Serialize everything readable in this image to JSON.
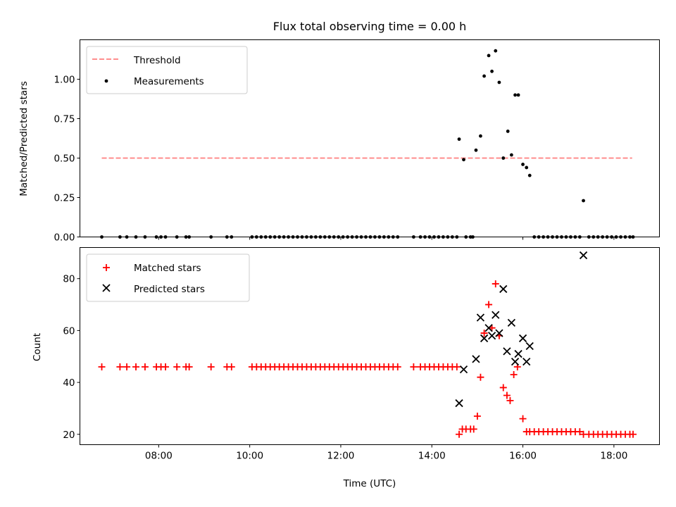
{
  "chart_data": [
    {
      "type": "scatter",
      "title": "Flux total observing time = 0.00 h",
      "ylabel": "Matched/Predicted stars",
      "xlabel": "",
      "x_unit": "hours UTC",
      "xlim": [
        6.27,
        19.0
      ],
      "ylim": [
        0,
        1.25
      ],
      "yticks": [
        "0.00",
        "0.25",
        "0.50",
        "0.75",
        "1.00"
      ],
      "xticks": [
        "08:00",
        "10:00",
        "12:00",
        "14:00",
        "16:00",
        "18:00"
      ],
      "legend_position": "top-left",
      "threshold": {
        "label": "Threshold",
        "value": 0.5,
        "x_range": [
          6.75,
          18.4
        ],
        "color": "#ff7f7f"
      },
      "series": [
        {
          "name": "Measurements",
          "color": "#000000",
          "marker": "dot",
          "points": [
            [
              6.75,
              0
            ],
            [
              7.15,
              0
            ],
            [
              7.3,
              0
            ],
            [
              7.5,
              0
            ],
            [
              7.7,
              0
            ],
            [
              7.95,
              0
            ],
            [
              8.05,
              0
            ],
            [
              8.15,
              0
            ],
            [
              8.4,
              0
            ],
            [
              8.6,
              0
            ],
            [
              8.67,
              0
            ],
            [
              9.15,
              0
            ],
            [
              9.5,
              0
            ],
            [
              9.6,
              0
            ],
            [
              10.05,
              0
            ],
            [
              10.15,
              0
            ],
            [
              10.25,
              0
            ],
            [
              10.35,
              0
            ],
            [
              10.45,
              0
            ],
            [
              10.55,
              0
            ],
            [
              10.65,
              0
            ],
            [
              10.75,
              0
            ],
            [
              10.85,
              0
            ],
            [
              10.95,
              0
            ],
            [
              11.05,
              0
            ],
            [
              11.15,
              0
            ],
            [
              11.25,
              0
            ],
            [
              11.35,
              0
            ],
            [
              11.45,
              0
            ],
            [
              11.55,
              0
            ],
            [
              11.65,
              0
            ],
            [
              11.75,
              0
            ],
            [
              11.85,
              0
            ],
            [
              11.95,
              0
            ],
            [
              12.05,
              0
            ],
            [
              12.15,
              0
            ],
            [
              12.25,
              0
            ],
            [
              12.35,
              0
            ],
            [
              12.45,
              0
            ],
            [
              12.55,
              0
            ],
            [
              12.65,
              0
            ],
            [
              12.75,
              0
            ],
            [
              12.85,
              0
            ],
            [
              12.95,
              0
            ],
            [
              13.05,
              0
            ],
            [
              13.15,
              0
            ],
            [
              13.25,
              0
            ],
            [
              13.6,
              0
            ],
            [
              13.75,
              0
            ],
            [
              13.85,
              0
            ],
            [
              13.95,
              0
            ],
            [
              14.05,
              0
            ],
            [
              14.15,
              0
            ],
            [
              14.25,
              0
            ],
            [
              14.35,
              0
            ],
            [
              14.45,
              0
            ],
            [
              14.55,
              0
            ],
            [
              14.75,
              0
            ],
            [
              14.85,
              0
            ],
            [
              14.9,
              0
            ],
            [
              14.6,
              0.62
            ],
            [
              14.7,
              0.49
            ],
            [
              14.97,
              0.55
            ],
            [
              15.07,
              0.64
            ],
            [
              15.15,
              1.02
            ],
            [
              15.25,
              1.15
            ],
            [
              15.32,
              1.05
            ],
            [
              15.4,
              1.18
            ],
            [
              15.48,
              0.98
            ],
            [
              15.57,
              0.5
            ],
            [
              15.67,
              0.67
            ],
            [
              15.75,
              0.52
            ],
            [
              15.83,
              0.9
            ],
            [
              15.9,
              0.9
            ],
            [
              16.0,
              0.46
            ],
            [
              16.08,
              0.44
            ],
            [
              16.15,
              0.39
            ],
            [
              16.25,
              0
            ],
            [
              16.35,
              0
            ],
            [
              16.45,
              0
            ],
            [
              16.55,
              0
            ],
            [
              16.65,
              0
            ],
            [
              16.75,
              0
            ],
            [
              16.85,
              0
            ],
            [
              16.95,
              0
            ],
            [
              17.05,
              0
            ],
            [
              17.15,
              0
            ],
            [
              17.25,
              0
            ],
            [
              17.33,
              0.23
            ],
            [
              17.45,
              0
            ],
            [
              17.55,
              0
            ],
            [
              17.65,
              0
            ],
            [
              17.75,
              0
            ],
            [
              17.85,
              0
            ],
            [
              17.95,
              0
            ],
            [
              18.05,
              0
            ],
            [
              18.15,
              0
            ],
            [
              18.25,
              0
            ],
            [
              18.35,
              0
            ],
            [
              18.42,
              0
            ]
          ]
        }
      ]
    },
    {
      "type": "scatter",
      "title": "",
      "xlabel": "Time (UTC)",
      "ylabel": "Count",
      "x_unit": "hours UTC",
      "xlim": [
        6.27,
        19.0
      ],
      "ylim": [
        16,
        92
      ],
      "yticks": [
        "20",
        "40",
        "60",
        "80"
      ],
      "xticks": [
        "08:00",
        "10:00",
        "12:00",
        "14:00",
        "16:00",
        "18:00"
      ],
      "legend_position": "top-left",
      "series": [
        {
          "name": "Matched stars",
          "color": "#ff0000",
          "marker": "plus",
          "points": [
            [
              6.75,
              46
            ],
            [
              7.15,
              46
            ],
            [
              7.3,
              46
            ],
            [
              7.5,
              46
            ],
            [
              7.7,
              46
            ],
            [
              7.95,
              46
            ],
            [
              8.05,
              46
            ],
            [
              8.15,
              46
            ],
            [
              8.4,
              46
            ],
            [
              8.6,
              46
            ],
            [
              8.67,
              46
            ],
            [
              9.15,
              46
            ],
            [
              9.5,
              46
            ],
            [
              9.6,
              46
            ],
            [
              10.05,
              46
            ],
            [
              10.15,
              46
            ],
            [
              10.25,
              46
            ],
            [
              10.35,
              46
            ],
            [
              10.45,
              46
            ],
            [
              10.55,
              46
            ],
            [
              10.65,
              46
            ],
            [
              10.75,
              46
            ],
            [
              10.85,
              46
            ],
            [
              10.95,
              46
            ],
            [
              11.05,
              46
            ],
            [
              11.15,
              46
            ],
            [
              11.25,
              46
            ],
            [
              11.35,
              46
            ],
            [
              11.45,
              46
            ],
            [
              11.55,
              46
            ],
            [
              11.65,
              46
            ],
            [
              11.75,
              46
            ],
            [
              11.85,
              46
            ],
            [
              11.95,
              46
            ],
            [
              12.05,
              46
            ],
            [
              12.15,
              46
            ],
            [
              12.25,
              46
            ],
            [
              12.35,
              46
            ],
            [
              12.45,
              46
            ],
            [
              12.55,
              46
            ],
            [
              12.65,
              46
            ],
            [
              12.75,
              46
            ],
            [
              12.85,
              46
            ],
            [
              12.95,
              46
            ],
            [
              13.05,
              46
            ],
            [
              13.15,
              46
            ],
            [
              13.25,
              46
            ],
            [
              13.6,
              46
            ],
            [
              13.75,
              46
            ],
            [
              13.85,
              46
            ],
            [
              13.95,
              46
            ],
            [
              14.05,
              46
            ],
            [
              14.15,
              46
            ],
            [
              14.25,
              46
            ],
            [
              14.35,
              46
            ],
            [
              14.45,
              46
            ],
            [
              14.55,
              46
            ],
            [
              14.6,
              20
            ],
            [
              14.67,
              22
            ],
            [
              14.75,
              22
            ],
            [
              14.85,
              22
            ],
            [
              14.92,
              22
            ],
            [
              15.0,
              27
            ],
            [
              15.07,
              42
            ],
            [
              15.15,
              59
            ],
            [
              15.25,
              70
            ],
            [
              15.32,
              61
            ],
            [
              15.4,
              78
            ],
            [
              15.48,
              58
            ],
            [
              15.57,
              38
            ],
            [
              15.65,
              35
            ],
            [
              15.72,
              33
            ],
            [
              15.8,
              43
            ],
            [
              15.88,
              46
            ],
            [
              16.0,
              26
            ],
            [
              16.08,
              21
            ],
            [
              16.15,
              21
            ],
            [
              16.25,
              21
            ],
            [
              16.35,
              21
            ],
            [
              16.45,
              21
            ],
            [
              16.55,
              21
            ],
            [
              16.65,
              21
            ],
            [
              16.75,
              21
            ],
            [
              16.85,
              21
            ],
            [
              16.95,
              21
            ],
            [
              17.05,
              21
            ],
            [
              17.15,
              21
            ],
            [
              17.25,
              21
            ],
            [
              17.33,
              20
            ],
            [
              17.45,
              20
            ],
            [
              17.55,
              20
            ],
            [
              17.65,
              20
            ],
            [
              17.75,
              20
            ],
            [
              17.85,
              20
            ],
            [
              17.95,
              20
            ],
            [
              18.05,
              20
            ],
            [
              18.15,
              20
            ],
            [
              18.25,
              20
            ],
            [
              18.35,
              20
            ],
            [
              18.42,
              20
            ]
          ]
        },
        {
          "name": "Predicted stars",
          "color": "#000000",
          "marker": "x",
          "points": [
            [
              14.6,
              32
            ],
            [
              14.7,
              45
            ],
            [
              14.97,
              49
            ],
            [
              15.07,
              65
            ],
            [
              15.15,
              57
            ],
            [
              15.25,
              61
            ],
            [
              15.32,
              58
            ],
            [
              15.4,
              66
            ],
            [
              15.48,
              59
            ],
            [
              15.57,
              76
            ],
            [
              15.65,
              52
            ],
            [
              15.75,
              63
            ],
            [
              15.83,
              48
            ],
            [
              15.9,
              51
            ],
            [
              16.0,
              57
            ],
            [
              16.08,
              48
            ],
            [
              16.15,
              54
            ],
            [
              17.33,
              89
            ]
          ]
        }
      ]
    }
  ]
}
